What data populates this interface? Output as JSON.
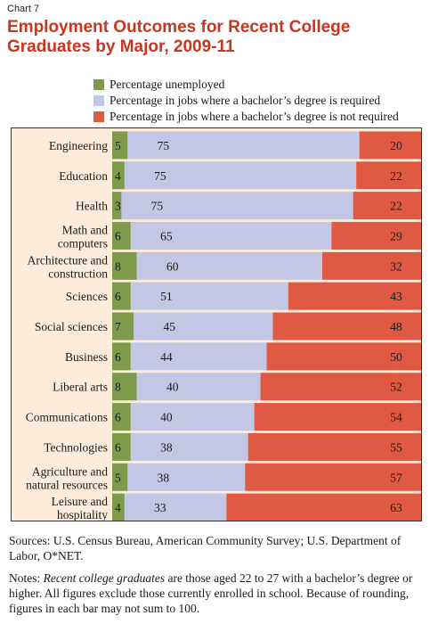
{
  "header": {
    "chart_number": "Chart 7",
    "title": "Employment Outcomes for Recent College Graduates by Major, 2009-11"
  },
  "colors": {
    "unemployed": "#7d9b4a",
    "required": "#c4c6e6",
    "not_required": "#e05a43",
    "plot_bg": "#fcecd9"
  },
  "chart_data": {
    "type": "bar",
    "orientation": "horizontal",
    "stacked": true,
    "categories": [
      [
        "Engineering"
      ],
      [
        "Education"
      ],
      [
        "Health"
      ],
      [
        "Math and",
        "computers"
      ],
      [
        "Architecture and",
        "construction"
      ],
      [
        "Sciences"
      ],
      [
        "Social sciences"
      ],
      [
        "Business"
      ],
      [
        "Liberal arts"
      ],
      [
        "Communications"
      ],
      [
        "Technologies"
      ],
      [
        "Agriculture and",
        "natural resources"
      ],
      [
        "Leisure and",
        "hospitality"
      ]
    ],
    "series": [
      {
        "name": "Percentage unemployed",
        "values": [
          5,
          4,
          3,
          6,
          8,
          6,
          7,
          6,
          8,
          6,
          6,
          5,
          4
        ]
      },
      {
        "name": "Percentage in jobs where a bachelor’s degree is required",
        "values": [
          75,
          75,
          75,
          65,
          60,
          51,
          45,
          44,
          40,
          40,
          38,
          38,
          33
        ]
      },
      {
        "name": "Percentage in jobs where a bachelor’s degree is not required",
        "values": [
          20,
          22,
          22,
          29,
          32,
          43,
          48,
          50,
          52,
          54,
          55,
          57,
          63
        ]
      }
    ],
    "xlim": [
      0,
      100
    ],
    "legend": "top"
  },
  "footer": {
    "sources": "Sources: U.S. Census Bureau, American Community Survey; U.S. Department of Labor, O*NET.",
    "notes_prefix": "Notes: ",
    "notes_italic": "Recent college graduates",
    "notes_rest": " are those aged 22 to 27 with a bachelor’s degree or higher. All figures exclude those currently enrolled in school. Because of rounding, figures in each bar may not sum to 100."
  }
}
